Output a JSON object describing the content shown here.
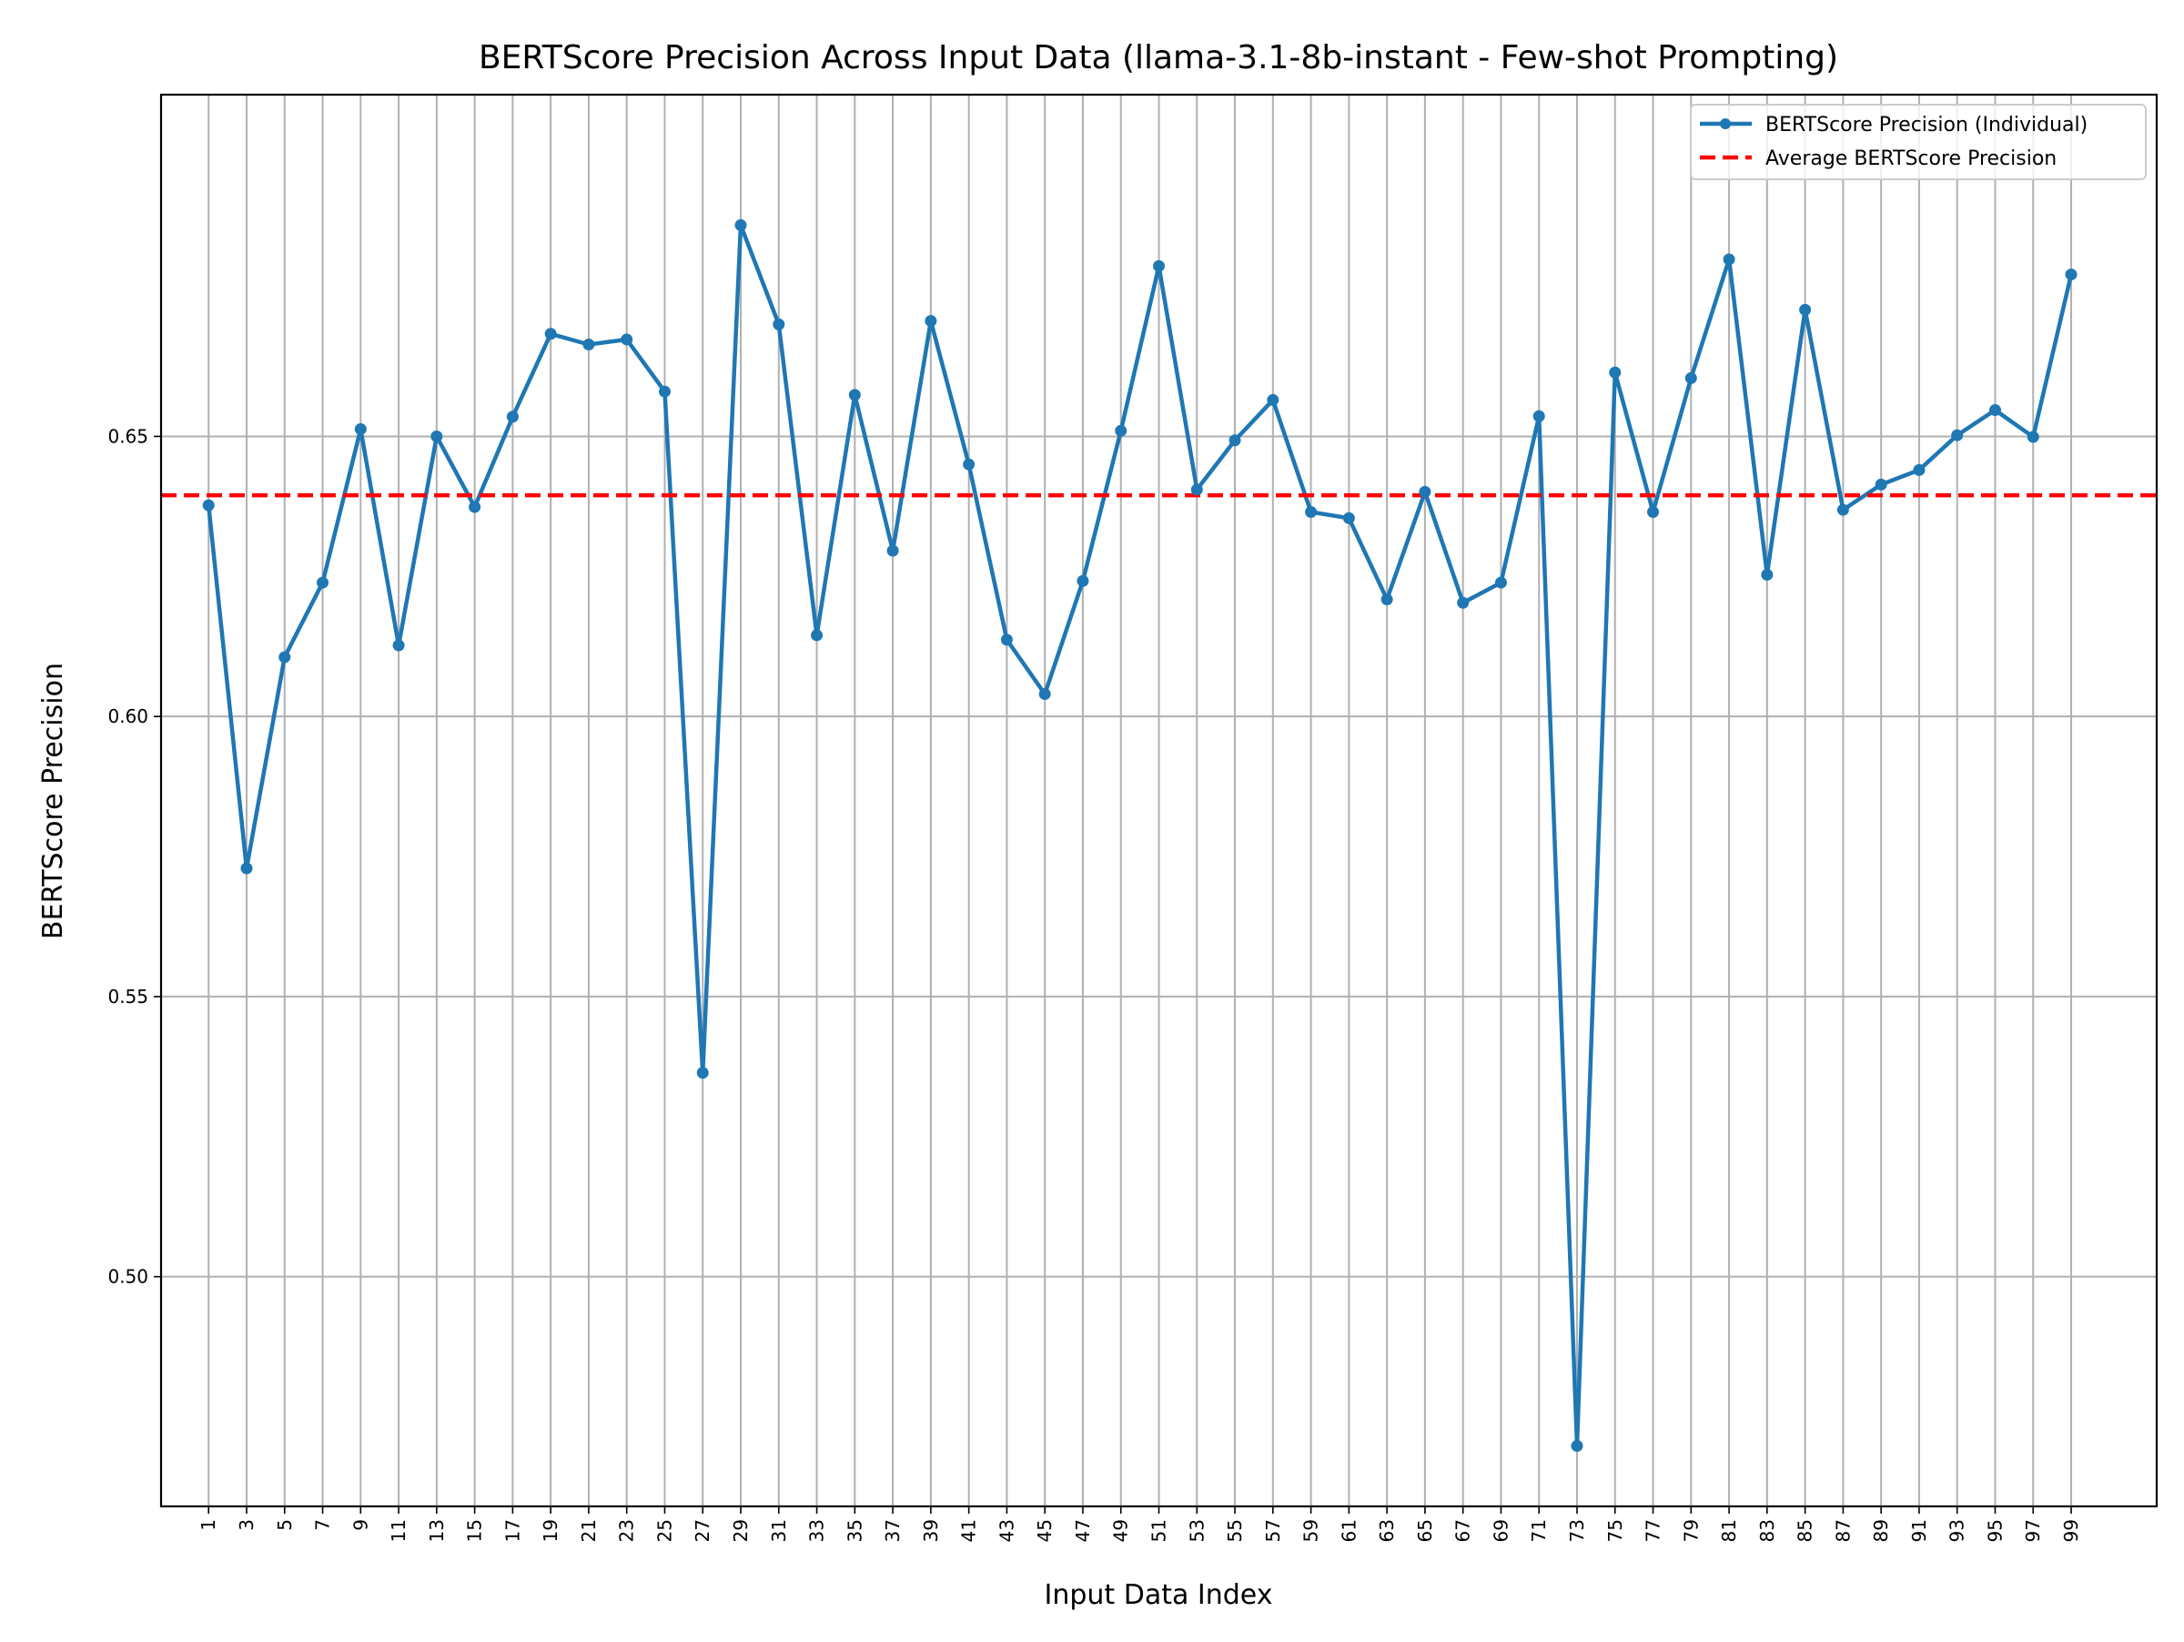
{
  "chart_data": {
    "type": "line",
    "title": "BERTScore Precision Across Input Data (llama-3.1-8b-instant - Few-shot Prompting)",
    "xlabel": "Input Data Index",
    "ylabel": "BERTScore Precision",
    "xlim": [
      -1.5,
      103.5
    ],
    "ylim": [
      0.459,
      0.711
    ],
    "x_ticks": [
      1,
      3,
      5,
      7,
      9,
      11,
      13,
      15,
      17,
      19,
      21,
      23,
      25,
      27,
      29,
      31,
      33,
      35,
      37,
      39,
      41,
      43,
      45,
      47,
      49,
      51,
      53,
      55,
      57,
      59,
      61,
      63,
      65,
      67,
      69,
      71,
      73,
      75,
      77,
      79,
      81,
      83,
      85,
      87,
      89,
      91,
      93,
      95,
      97,
      99
    ],
    "y_ticks": [
      0.5,
      0.55,
      0.6,
      0.65
    ],
    "y_tick_labels": [
      "0.50",
      "0.55",
      "0.60",
      "0.65"
    ],
    "grid": true,
    "legend_position": "top-right",
    "series": [
      {
        "name": "BERTScore Precision (Individual)",
        "color": "#1f77b4",
        "style": "solid-with-markers",
        "x": [
          1,
          3,
          5,
          7,
          9,
          11,
          13,
          15,
          17,
          19,
          21,
          23,
          25,
          27,
          29,
          31,
          33,
          35,
          37,
          39,
          41,
          43,
          45,
          47,
          49,
          51,
          53,
          55,
          57,
          59,
          61,
          63,
          65,
          67,
          69,
          71,
          73,
          75,
          77,
          79,
          81,
          83,
          85,
          87,
          89,
          91,
          93,
          95,
          97,
          99
        ],
        "values": [
          0.6377,
          0.5729,
          0.6106,
          0.6239,
          0.6513,
          0.6127,
          0.65,
          0.6374,
          0.6535,
          0.6683,
          0.6664,
          0.6673,
          0.658,
          0.5364,
          0.6877,
          0.67,
          0.6145,
          0.6574,
          0.6296,
          0.6706,
          0.645,
          0.6137,
          0.604,
          0.6242,
          0.651,
          0.6804,
          0.6405,
          0.6493,
          0.6565,
          0.6365,
          0.6354,
          0.6209,
          0.6401,
          0.6203,
          0.6239,
          0.6536,
          0.4698,
          0.6614,
          0.6365,
          0.6604,
          0.6816,
          0.6253,
          0.6726,
          0.6369,
          0.6414,
          0.644,
          0.6502,
          0.6547,
          0.6499,
          0.6789
        ]
      },
      {
        "name": "Average BERTScore Precision",
        "color": "#ff0000",
        "style": "dashed",
        "value": 0.6395
      }
    ]
  }
}
